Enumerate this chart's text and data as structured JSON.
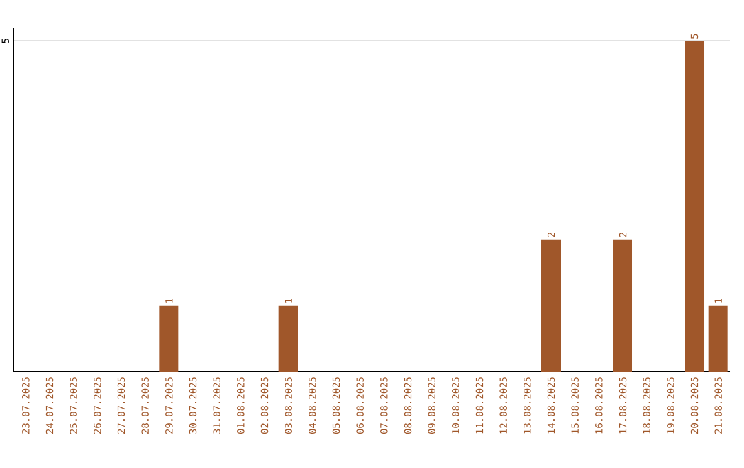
{
  "chart_data": {
    "type": "bar",
    "categories": [
      "23.07.2025",
      "24.07.2025",
      "25.07.2025",
      "26.07.2025",
      "27.07.2025",
      "28.07.2025",
      "29.07.2025",
      "30.07.2025",
      "31.07.2025",
      "01.08.2025",
      "02.08.2025",
      "03.08.2025",
      "04.08.2025",
      "05.08.2025",
      "06.08.2025",
      "07.08.2025",
      "08.08.2025",
      "09.08.2025",
      "10.08.2025",
      "11.08.2025",
      "12.08.2025",
      "13.08.2025",
      "14.08.2025",
      "15.08.2025",
      "16.08.2025",
      "17.08.2025",
      "18.08.2025",
      "19.08.2025",
      "20.08.2025",
      "21.08.2025"
    ],
    "values": [
      0,
      0,
      0,
      0,
      0,
      0,
      1,
      0,
      0,
      0,
      0,
      1,
      0,
      0,
      0,
      0,
      0,
      0,
      0,
      0,
      0,
      0,
      2,
      0,
      0,
      2,
      0,
      0,
      5,
      1
    ],
    "value_labels": [
      null,
      null,
      null,
      null,
      null,
      null,
      "1",
      null,
      null,
      null,
      null,
      "1",
      null,
      null,
      null,
      null,
      null,
      null,
      null,
      null,
      null,
      null,
      "2",
      null,
      null,
      "2",
      null,
      null,
      "5",
      "1"
    ],
    "color": "#a0572a",
    "ylim": [
      0,
      5
    ],
    "yticks": [
      {
        "value": 0,
        "label": null
      },
      5
    ],
    "grid": "y"
  }
}
